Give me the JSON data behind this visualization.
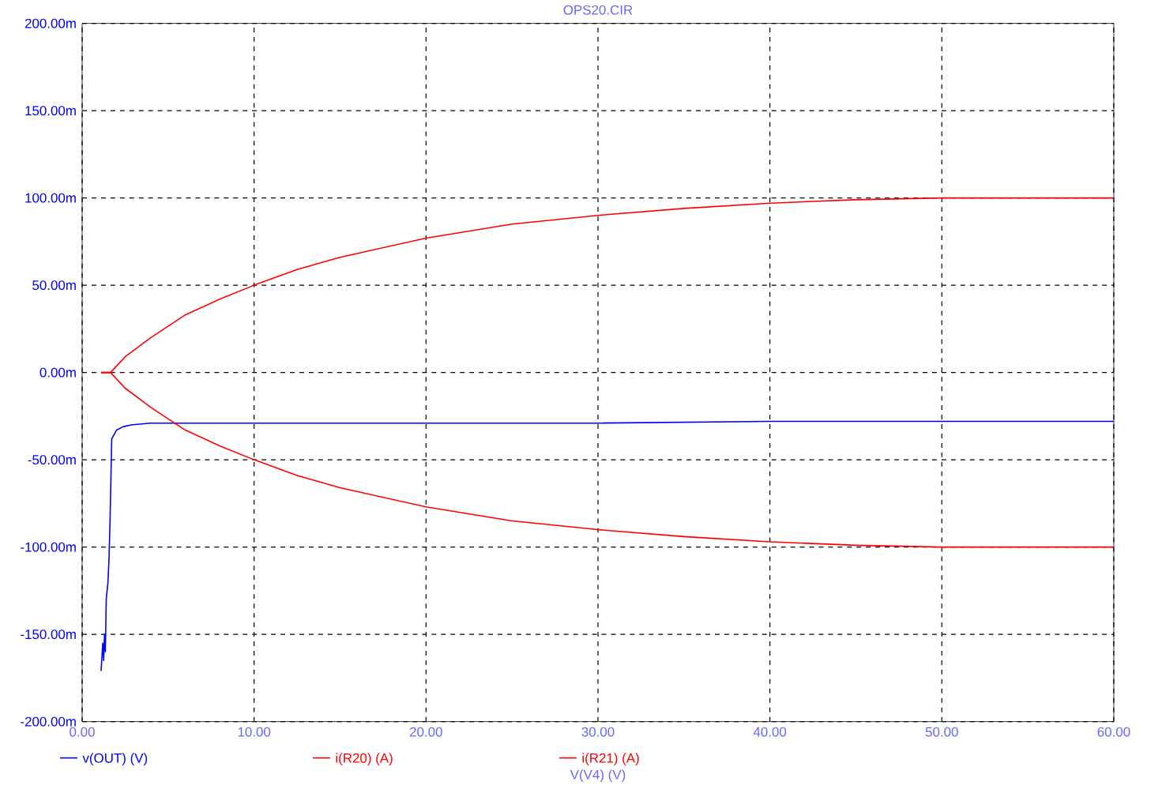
{
  "chart_data": {
    "type": "line",
    "title": "OPS20.CIR",
    "xlabel": "V(V4) (V)",
    "xlim": [
      0,
      60
    ],
    "ylim": [
      -200,
      200
    ],
    "xticks": [
      {
        "value": 0,
        "label": "0.00"
      },
      {
        "value": 10,
        "label": "10.00"
      },
      {
        "value": 20,
        "label": "20.00"
      },
      {
        "value": 30,
        "label": "30.00"
      },
      {
        "value": 40,
        "label": "40.00"
      },
      {
        "value": 50,
        "label": "50.00"
      },
      {
        "value": 60,
        "label": "60.00"
      }
    ],
    "yticks": [
      {
        "value": -200,
        "label": "-200.00m"
      },
      {
        "value": -150,
        "label": "-150.00m"
      },
      {
        "value": -100,
        "label": "-100.00m"
      },
      {
        "value": -50,
        "label": "-50.00m"
      },
      {
        "value": 0,
        "label": "0.00m"
      },
      {
        "value": 50,
        "label": "50.00m"
      },
      {
        "value": 100,
        "label": "100.00m"
      },
      {
        "value": 150,
        "label": "150.00m"
      },
      {
        "value": 200,
        "label": "200.00m"
      }
    ],
    "grid": true,
    "legend": "bottom",
    "line_style": "solid",
    "series": [
      {
        "name": "v(OUT) (V)",
        "color": "#0000ff",
        "x": [
          1.1,
          1.2,
          1.25,
          1.3,
          1.35,
          1.4,
          1.5,
          1.56,
          1.62,
          1.72,
          2.0,
          2.4,
          2.85,
          3.95,
          10,
          20,
          30,
          40,
          50,
          60
        ],
        "values": [
          -171,
          -155,
          -165,
          -150,
          -160,
          -130,
          -120,
          -107,
          -86,
          -38,
          -33,
          -31,
          -30,
          -29,
          -29,
          -29,
          -29,
          -28,
          -28,
          -28
        ]
      },
      {
        "name": "i(R20) (A)",
        "color": "#ff0000",
        "x": [
          1.1,
          1.65,
          2.5,
          4,
          6,
          8,
          10,
          12.5,
          15,
          20,
          25,
          30,
          35,
          40,
          45,
          50,
          55,
          60
        ],
        "values": [
          0,
          0,
          9,
          20,
          33,
          42,
          50,
          59,
          66,
          77,
          85,
          90,
          94,
          97,
          99,
          100,
          100,
          100
        ]
      },
      {
        "name": "i(R21) (A)",
        "color": "#ff0000",
        "x": [
          1.1,
          1.65,
          2.5,
          4,
          6,
          8,
          10,
          12.5,
          15,
          20,
          25,
          30,
          35,
          40,
          45,
          50,
          55,
          60
        ],
        "values": [
          0,
          0,
          -9,
          -20,
          -33,
          -42,
          -50,
          -59,
          -66,
          -77,
          -85,
          -90,
          -94,
          -97,
          -99,
          -100,
          -100,
          -100
        ]
      }
    ]
  }
}
